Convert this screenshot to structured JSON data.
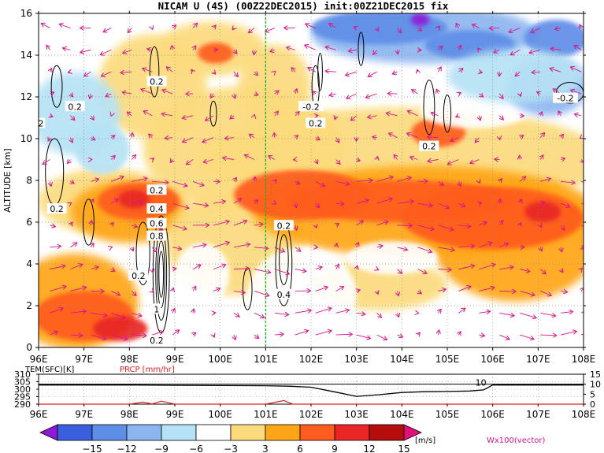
{
  "title": "NICAM U (4S) (00Z22DEC2015) init:00Z21DEC2015 fix",
  "chart_data": [
    {
      "type": "heatmap",
      "name": "zonal-wind-cross-section",
      "ylabel": "ALTITUDE [km]",
      "xlim": [
        96,
        108
      ],
      "ylim": [
        0,
        16
      ],
      "x_ticks": [
        "96E",
        "97E",
        "98E",
        "99E",
        "100E",
        "101E",
        "102E",
        "103E",
        "104E",
        "105E",
        "106E",
        "107E",
        "108E"
      ],
      "y_ticks": [
        "0",
        "2",
        "4",
        "6",
        "8",
        "10",
        "12",
        "14",
        "16"
      ],
      "reference_line_x": 101,
      "grid": true,
      "contour_labels": [
        {
          "text": "0.2",
          "x": 96.8,
          "y": 11.5
        },
        {
          "text": "2",
          "x": 96.05,
          "y": 10.7
        },
        {
          "text": "0.2",
          "x": 98.6,
          "y": 12.7
        },
        {
          "text": "0.2",
          "x": 96.4,
          "y": 6.6
        },
        {
          "text": "0.2",
          "x": 98.6,
          "y": 7.5
        },
        {
          "text": "0.4",
          "x": 98.6,
          "y": 6.6
        },
        {
          "text": "0.6",
          "x": 98.6,
          "y": 5.9
        },
        {
          "text": "0.8",
          "x": 98.6,
          "y": 5.3
        },
        {
          "text": "0.2",
          "x": 98.2,
          "y": 3.4
        },
        {
          "text": "1",
          "x": 98.6,
          "y": 1.8
        },
        {
          "text": "0.2",
          "x": 98.6,
          "y": 0.3
        },
        {
          "text": "0.2",
          "x": 101.4,
          "y": 5.8
        },
        {
          "text": "0.4",
          "x": 101.4,
          "y": 2.5
        },
        {
          "text": "-0.2",
          "x": 102.0,
          "y": 11.5
        },
        {
          "text": "0.2",
          "x": 102.1,
          "y": 10.7
        },
        {
          "text": "0.2",
          "x": 104.6,
          "y": 9.6
        },
        {
          "text": "-0.2",
          "x": 107.6,
          "y": 11.9
        }
      ]
    },
    {
      "type": "line",
      "name": "surface-time-series",
      "series": [
        {
          "name": "TEM(SFC)[K]",
          "color": "#000000",
          "x": [
            96,
            97,
            98,
            99,
            100,
            101,
            101.5,
            102,
            102.5,
            103,
            103.5,
            104,
            104.5,
            105,
            105.5,
            105.8,
            106,
            107,
            108
          ],
          "values": [
            302.8,
            302.8,
            302.8,
            302.6,
            302.4,
            302.3,
            302.0,
            301.3,
            298.3,
            295.2,
            296.3,
            297.8,
            298.3,
            298.5,
            298.8,
            299.5,
            302.8,
            302.8,
            302.8
          ]
        },
        {
          "name": "PRCP [mm/hr]",
          "color": "#e02020",
          "x": [
            96,
            98,
            98.3,
            98.5,
            98.7,
            99,
            100,
            101,
            101.4,
            101.6,
            102,
            108
          ],
          "values": [
            0,
            0,
            1.0,
            0.1,
            1.5,
            0,
            0,
            0,
            1.8,
            0,
            0,
            0
          ]
        }
      ],
      "left_ticks": [
        "310",
        "305",
        "300",
        "295",
        "290"
      ],
      "right_ticks": [
        "15",
        "10",
        "5",
        "0"
      ],
      "left_ylim": [
        290,
        310
      ],
      "right_ylim": [
        0,
        15
      ],
      "reference_value": 10,
      "reference_label": "10",
      "x_ticks": [
        "96E",
        "97E",
        "98E",
        "99E",
        "100E",
        "101E",
        "102E",
        "103E",
        "104E",
        "105E",
        "106E",
        "107E",
        "108E"
      ]
    }
  ],
  "legend": {
    "colors": [
      "#8e1ad6",
      "#3a5fdc",
      "#5e8ee8",
      "#8db6f0",
      "#b6e2f5",
      "#ffffff",
      "#fcdb7d",
      "#ffa517",
      "#ff5c1f",
      "#e82626",
      "#b50c0c",
      "#e0127a"
    ],
    "labels": [
      "−15",
      "−12",
      "−9",
      "−6",
      "−3",
      "3",
      "6",
      "9",
      "12",
      "15"
    ],
    "unit": "[m/s]",
    "vector_label": "Wx100(vector)"
  }
}
